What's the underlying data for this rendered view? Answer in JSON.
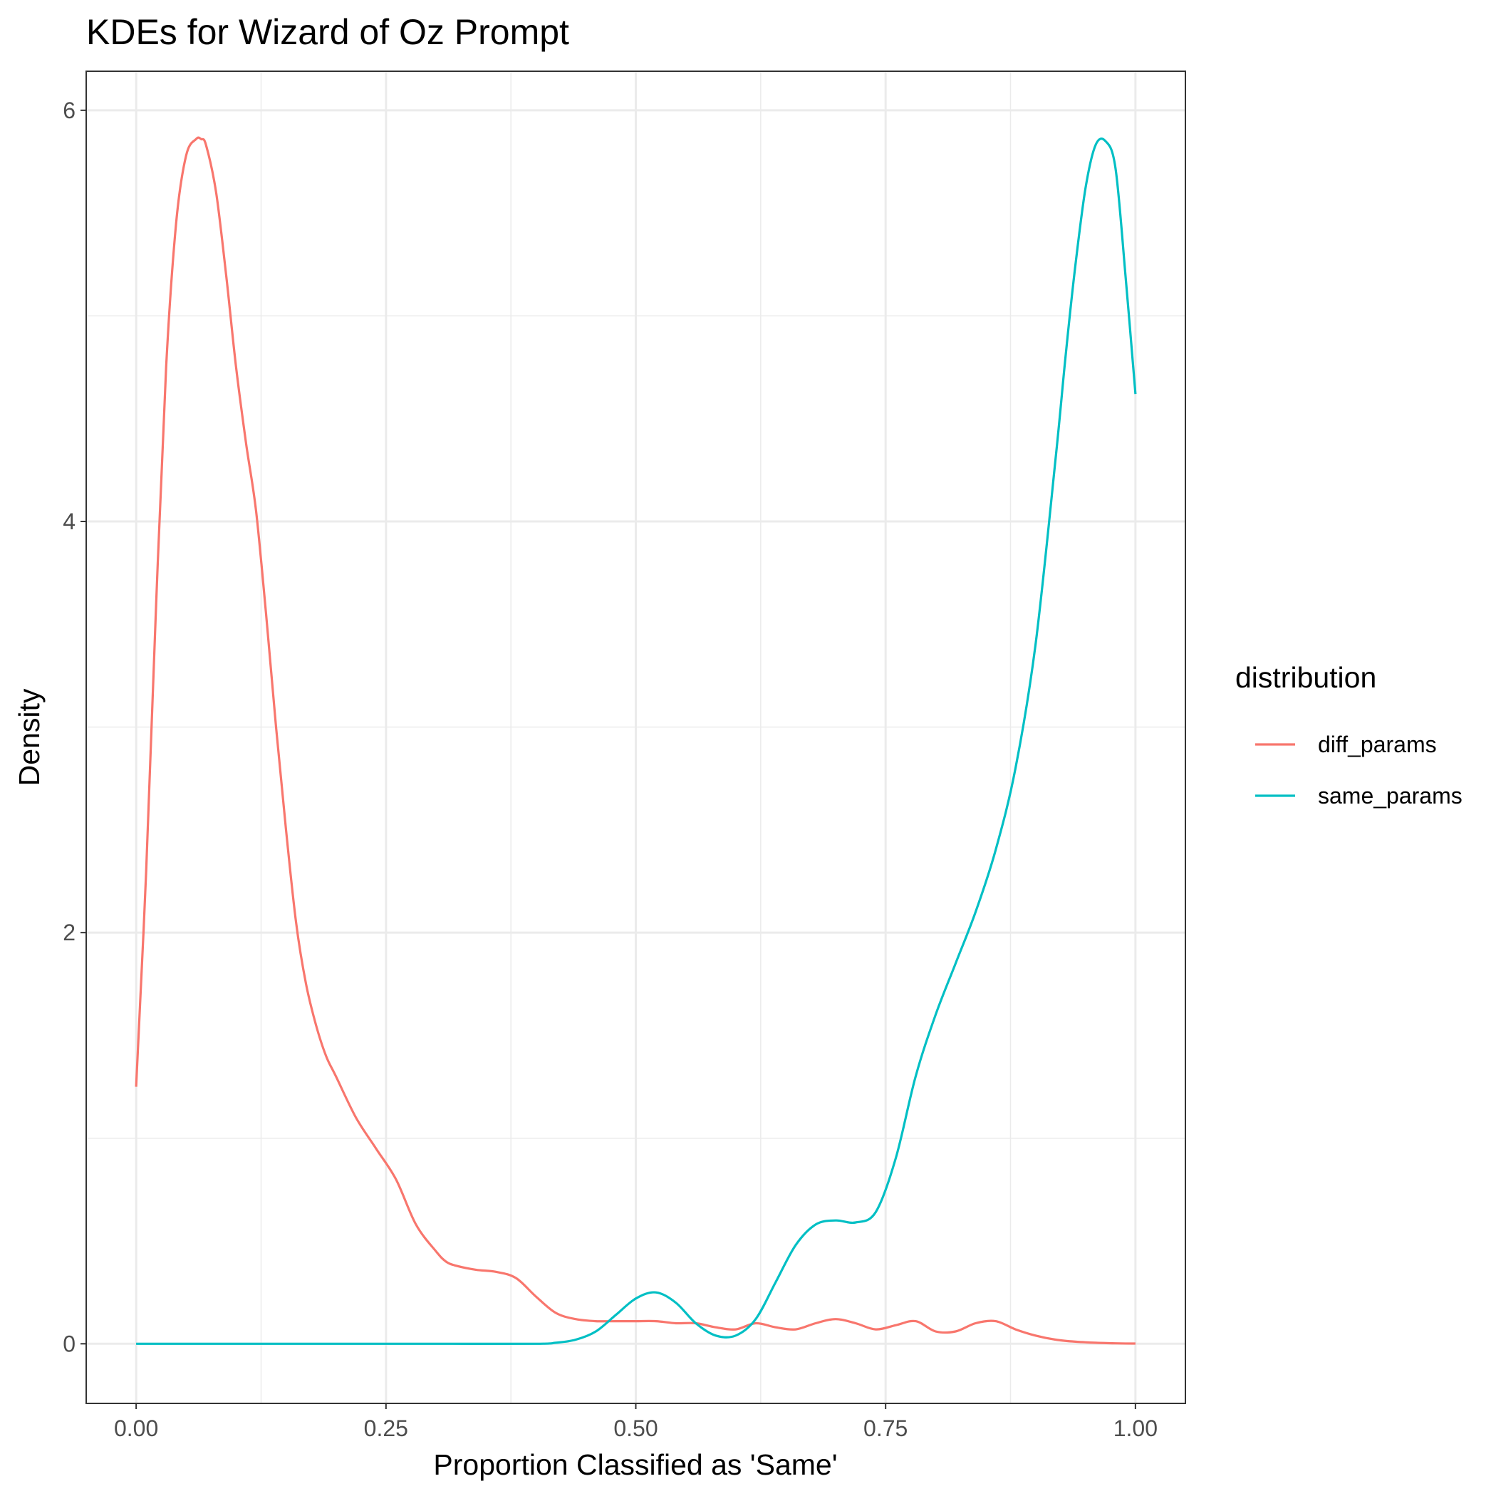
{
  "chart_data": {
    "type": "line",
    "title": "KDEs for Wizard of Oz Prompt",
    "xlabel": "Proportion Classified as 'Same'",
    "ylabel": "Density",
    "xlim": [
      -0.05,
      1.05
    ],
    "ylim": [
      -0.29,
      6.19
    ],
    "x_ticks": [
      0,
      0.25,
      0.5,
      0.75,
      1
    ],
    "x_tick_labels": [
      "0.00",
      "0.25",
      "0.50",
      "0.75",
      "1.00"
    ],
    "y_ticks": [
      0,
      2,
      4,
      6
    ],
    "y_tick_labels": [
      "0",
      "2",
      "4",
      "6"
    ],
    "grid": true,
    "legend": {
      "title": "distribution",
      "position": "right"
    },
    "series": [
      {
        "name": "diff_params",
        "color": "#F8766D",
        "x": [
          0,
          0.01,
          0.02,
          0.03,
          0.04,
          0.05,
          0.06,
          0.065,
          0.07,
          0.08,
          0.09,
          0.1,
          0.11,
          0.12,
          0.13,
          0.14,
          0.15,
          0.16,
          0.17,
          0.18,
          0.19,
          0.2,
          0.22,
          0.24,
          0.26,
          0.28,
          0.3,
          0.31,
          0.32,
          0.34,
          0.36,
          0.38,
          0.4,
          0.42,
          0.44,
          0.46,
          0.48,
          0.5,
          0.52,
          0.54,
          0.56,
          0.58,
          0.6,
          0.62,
          0.64,
          0.66,
          0.68,
          0.7,
          0.72,
          0.74,
          0.76,
          0.78,
          0.8,
          0.82,
          0.84,
          0.86,
          0.88,
          0.9,
          0.92,
          0.94,
          0.96,
          0.98,
          1.0
        ],
        "y": [
          1.25,
          2.3,
          3.6,
          4.75,
          5.45,
          5.78,
          5.86,
          5.86,
          5.83,
          5.6,
          5.2,
          4.75,
          4.38,
          4.05,
          3.55,
          3.0,
          2.5,
          2.05,
          1.75,
          1.55,
          1.4,
          1.3,
          1.1,
          0.95,
          0.8,
          0.58,
          0.45,
          0.4,
          0.38,
          0.36,
          0.35,
          0.32,
          0.23,
          0.15,
          0.12,
          0.11,
          0.11,
          0.11,
          0.11,
          0.1,
          0.1,
          0.08,
          0.07,
          0.1,
          0.08,
          0.07,
          0.1,
          0.12,
          0.1,
          0.07,
          0.09,
          0.11,
          0.06,
          0.06,
          0.1,
          0.11,
          0.07,
          0.04,
          0.02,
          0.01,
          0.005,
          0.002,
          0.001
        ]
      },
      {
        "name": "same_params",
        "color": "#00BFC4",
        "x": [
          0,
          0.1,
          0.2,
          0.3,
          0.4,
          0.42,
          0.44,
          0.46,
          0.48,
          0.5,
          0.52,
          0.54,
          0.56,
          0.58,
          0.6,
          0.62,
          0.64,
          0.66,
          0.68,
          0.7,
          0.72,
          0.74,
          0.76,
          0.78,
          0.8,
          0.82,
          0.84,
          0.86,
          0.88,
          0.9,
          0.92,
          0.93,
          0.94,
          0.95,
          0.96,
          0.97,
          0.98,
          0.99,
          1.0
        ],
        "y": [
          0,
          0,
          0,
          0,
          0,
          0.005,
          0.02,
          0.06,
          0.14,
          0.22,
          0.25,
          0.2,
          0.1,
          0.04,
          0.04,
          0.12,
          0.3,
          0.48,
          0.58,
          0.6,
          0.59,
          0.64,
          0.9,
          1.3,
          1.6,
          1.85,
          2.1,
          2.4,
          2.8,
          3.4,
          4.3,
          4.8,
          5.25,
          5.62,
          5.83,
          5.85,
          5.72,
          5.2,
          4.62
        ]
      }
    ]
  }
}
